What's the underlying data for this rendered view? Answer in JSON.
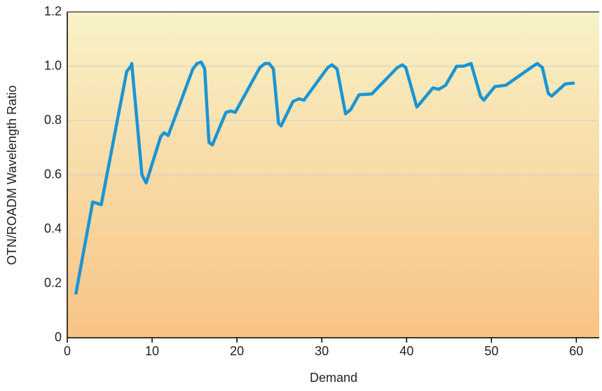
{
  "chart_data": {
    "type": "line",
    "x_label": "Demand",
    "y_label": "OTN/ROADM Wavelength Ratio",
    "x": [
      1,
      3,
      4,
      7,
      7.5,
      7.6,
      8.8,
      9.3,
      11,
      11.4,
      11.9,
      14.8,
      15.3,
      15.8,
      16.2,
      16.7,
      17.1,
      18.7,
      19.3,
      19.8,
      22.7,
      23.3,
      23.8,
      24.3,
      24.9,
      25.2,
      26.6,
      27.3,
      27.9,
      30.7,
      31.2,
      31.8,
      32.8,
      33.4,
      34.4,
      35.5,
      35.9,
      38.9,
      39.5,
      39.9,
      41.2,
      41.5,
      43.1,
      43.8,
      44.6,
      45.9,
      46.7,
      47.6,
      48.7,
      49.1,
      50.4,
      51.7,
      54.9,
      55.4,
      56,
      56.7,
      57.1,
      58.7,
      59.8
    ],
    "series": [
      {
        "color": "#1b95d2",
        "values": [
          0.16,
          0.5,
          0.49,
          0.98,
          1.0,
          1.01,
          0.6,
          0.57,
          0.74,
          0.755,
          0.745,
          0.99,
          1.01,
          1.015,
          0.99,
          0.72,
          0.71,
          0.83,
          0.835,
          0.83,
          0.995,
          1.01,
          1.01,
          0.99,
          0.79,
          0.78,
          0.87,
          0.88,
          0.875,
          0.995,
          1.005,
          0.99,
          0.825,
          0.84,
          0.895,
          0.897,
          0.898,
          0.995,
          1.005,
          0.995,
          0.85,
          0.86,
          0.92,
          0.915,
          0.93,
          1.0,
          1.0,
          1.01,
          0.89,
          0.875,
          0.925,
          0.93,
          1.0,
          1.01,
          0.995,
          0.9,
          0.89,
          0.935,
          0.938
        ]
      }
    ],
    "xlim": [
      0,
      62.7
    ],
    "xticks": [
      0,
      10,
      20,
      30,
      40,
      50,
      60
    ],
    "ylim": [
      0,
      1.2
    ],
    "yticks": [
      0,
      0.2,
      0.4,
      0.6,
      0.8,
      {
        "value": 1.0,
        "label": "1.0"
      },
      1.2
    ],
    "grid": true
  }
}
